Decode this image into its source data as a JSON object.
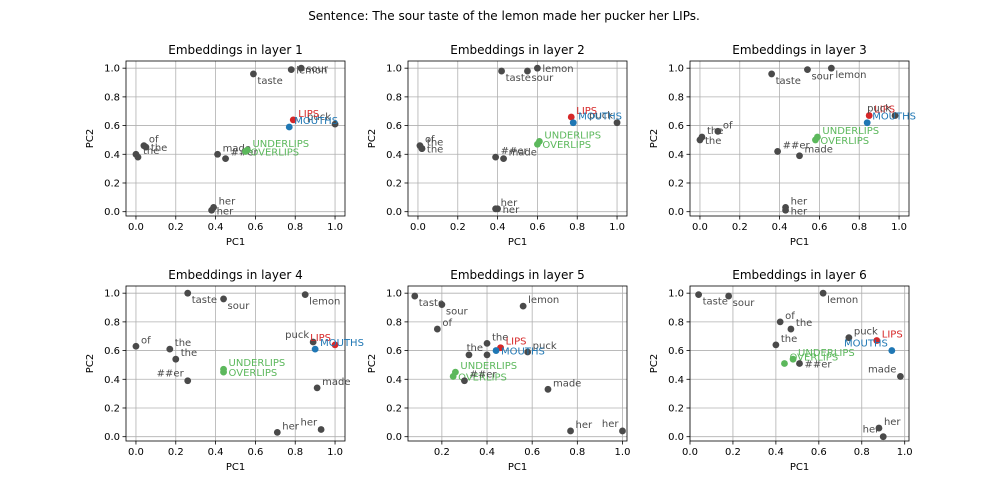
{
  "figure": {
    "title": "Sentence: The sour taste of the lemon made her pucker her LIPs."
  },
  "colors": {
    "default": "#4a4a4a",
    "target": "#d62728",
    "definition": "#1f77b4",
    "related": "#5cb85c",
    "grid": "#b0b0b0",
    "axis": "#000000"
  },
  "chart_data": [
    {
      "type": "scatter",
      "title": "Embeddings in layer 1",
      "xlabel": "PC1",
      "ylabel": "PC2",
      "xlim": [
        -0.05,
        1.05
      ],
      "ylim": [
        -0.03,
        1.05
      ],
      "xticks": [
        0.0,
        0.2,
        0.4,
        0.6,
        0.8,
        1.0
      ],
      "yticks": [
        0.0,
        0.2,
        0.4,
        0.6,
        0.8,
        1.0
      ],
      "grid": true,
      "points": [
        {
          "label": "taste",
          "x": 0.59,
          "y": 0.96,
          "group": "default",
          "anchor": "br"
        },
        {
          "label": "sour",
          "x": 0.83,
          "y": 1.0,
          "group": "default",
          "anchor": "r"
        },
        {
          "label": "lemon",
          "x": 0.78,
          "y": 0.99,
          "group": "default",
          "anchor": "r"
        },
        {
          "label": "puck",
          "x": 1.0,
          "y": 0.61,
          "group": "default",
          "anchor": "tl"
        },
        {
          "label": "LIPS",
          "x": 0.79,
          "y": 0.64,
          "group": "target",
          "anchor": "tr"
        },
        {
          "label": "MOUTHS",
          "x": 0.77,
          "y": 0.59,
          "group": "definition",
          "anchor": "tr"
        },
        {
          "label": "of",
          "x": 0.04,
          "y": 0.46,
          "group": "default",
          "anchor": "tr"
        },
        {
          "label": "the",
          "x": 0.05,
          "y": 0.45,
          "group": "default",
          "anchor": "r"
        },
        {
          "label": "the",
          "x": 0.01,
          "y": 0.38,
          "group": "default",
          "anchor": "tr"
        },
        {
          "label": "",
          "x": 0.0,
          "y": 0.4,
          "group": "default",
          "anchor": "r"
        },
        {
          "label": "made",
          "x": 0.41,
          "y": 0.4,
          "group": "default",
          "anchor": "tr"
        },
        {
          "label": "##er",
          "x": 0.45,
          "y": 0.37,
          "group": "default",
          "anchor": "tr"
        },
        {
          "label": "UNDERLIPS",
          "x": 0.56,
          "y": 0.43,
          "group": "related",
          "anchor": "tr"
        },
        {
          "label": "OVERLIPS",
          "x": 0.55,
          "y": 0.42,
          "group": "related",
          "anchor": "r"
        },
        {
          "label": "her",
          "x": 0.39,
          "y": 0.03,
          "group": "default",
          "anchor": "tr"
        },
        {
          "label": "her",
          "x": 0.38,
          "y": 0.01,
          "group": "default",
          "anchor": "r"
        }
      ]
    },
    {
      "type": "scatter",
      "title": "Embeddings in layer 2",
      "xlabel": "PC1",
      "ylabel": "PC2",
      "xlim": [
        -0.05,
        1.05
      ],
      "ylim": [
        -0.03,
        1.05
      ],
      "xticks": [
        0.0,
        0.2,
        0.4,
        0.6,
        0.8,
        1.0
      ],
      "yticks": [
        0.0,
        0.2,
        0.4,
        0.6,
        0.8,
        1.0
      ],
      "grid": true,
      "points": [
        {
          "label": "taste",
          "x": 0.42,
          "y": 0.98,
          "group": "default",
          "anchor": "br"
        },
        {
          "label": "sour",
          "x": 0.55,
          "y": 0.98,
          "group": "default",
          "anchor": "br"
        },
        {
          "label": "lemon",
          "x": 0.6,
          "y": 1.0,
          "group": "default",
          "anchor": "r"
        },
        {
          "label": "puck",
          "x": 1.0,
          "y": 0.62,
          "group": "default",
          "anchor": "tl"
        },
        {
          "label": "LIPS",
          "x": 0.77,
          "y": 0.66,
          "group": "target",
          "anchor": "tr"
        },
        {
          "label": "MOUTHS",
          "x": 0.78,
          "y": 0.62,
          "group": "definition",
          "anchor": "tr"
        },
        {
          "label": "of",
          "x": 0.01,
          "y": 0.46,
          "group": "default",
          "anchor": "tr"
        },
        {
          "label": "the",
          "x": 0.02,
          "y": 0.44,
          "group": "default",
          "anchor": "tr"
        },
        {
          "label": "the",
          "x": 0.02,
          "y": 0.44,
          "group": "default",
          "anchor": "r"
        },
        {
          "label": "##er",
          "x": 0.39,
          "y": 0.38,
          "group": "default",
          "anchor": "tr"
        },
        {
          "label": "made",
          "x": 0.43,
          "y": 0.37,
          "group": "default",
          "anchor": "tr"
        },
        {
          "label": "UNDERLIPS",
          "x": 0.61,
          "y": 0.49,
          "group": "related",
          "anchor": "tr"
        },
        {
          "label": "OVERLIPS",
          "x": 0.6,
          "y": 0.47,
          "group": "related",
          "anchor": "r"
        },
        {
          "label": "her",
          "x": 0.39,
          "y": 0.02,
          "group": "default",
          "anchor": "tr"
        },
        {
          "label": "her",
          "x": 0.4,
          "y": 0.02,
          "group": "default",
          "anchor": "r"
        }
      ]
    },
    {
      "type": "scatter",
      "title": "Embeddings in layer 3",
      "xlabel": "PC1",
      "ylabel": "PC2",
      "xlim": [
        -0.05,
        1.05
      ],
      "ylim": [
        -0.03,
        1.05
      ],
      "xticks": [
        0.0,
        0.2,
        0.4,
        0.6,
        0.8,
        1.0
      ],
      "yticks": [
        0.0,
        0.2,
        0.4,
        0.6,
        0.8,
        1.0
      ],
      "grid": true,
      "points": [
        {
          "label": "taste",
          "x": 0.36,
          "y": 0.96,
          "group": "default",
          "anchor": "br"
        },
        {
          "label": "sour",
          "x": 0.54,
          "y": 0.99,
          "group": "default",
          "anchor": "br"
        },
        {
          "label": "lemon",
          "x": 0.66,
          "y": 1.0,
          "group": "default",
          "anchor": "br"
        },
        {
          "label": "LIPS",
          "x": 0.85,
          "y": 0.67,
          "group": "target",
          "anchor": "tr"
        },
        {
          "label": "puck",
          "x": 0.98,
          "y": 0.67,
          "group": "default",
          "anchor": "tl"
        },
        {
          "label": "MOUTHS",
          "x": 0.84,
          "y": 0.62,
          "group": "definition",
          "anchor": "tr"
        },
        {
          "label": "of",
          "x": 0.09,
          "y": 0.56,
          "group": "default",
          "anchor": "tr"
        },
        {
          "label": "the",
          "x": 0.01,
          "y": 0.52,
          "group": "default",
          "anchor": "tr"
        },
        {
          "label": "the",
          "x": 0.0,
          "y": 0.5,
          "group": "default",
          "anchor": "r"
        },
        {
          "label": "UNDERLIPS",
          "x": 0.59,
          "y": 0.52,
          "group": "related",
          "anchor": "tr"
        },
        {
          "label": "OVERLIPS",
          "x": 0.58,
          "y": 0.5,
          "group": "related",
          "anchor": "r"
        },
        {
          "label": "##er",
          "x": 0.39,
          "y": 0.42,
          "group": "default",
          "anchor": "tr"
        },
        {
          "label": "made",
          "x": 0.5,
          "y": 0.39,
          "group": "default",
          "anchor": "tr"
        },
        {
          "label": "her",
          "x": 0.43,
          "y": 0.03,
          "group": "default",
          "anchor": "tr"
        },
        {
          "label": "her",
          "x": 0.43,
          "y": 0.01,
          "group": "default",
          "anchor": "r"
        }
      ]
    },
    {
      "type": "scatter",
      "title": "Embeddings in layer 4",
      "xlabel": "PC1",
      "ylabel": "PC2",
      "xlim": [
        -0.05,
        1.05
      ],
      "ylim": [
        -0.03,
        1.05
      ],
      "xticks": [
        0.0,
        0.2,
        0.4,
        0.6,
        0.8,
        1.0
      ],
      "yticks": [
        0.0,
        0.2,
        0.4,
        0.6,
        0.8,
        1.0
      ],
      "grid": true,
      "points": [
        {
          "label": "taste",
          "x": 0.26,
          "y": 1.0,
          "group": "default",
          "anchor": "br"
        },
        {
          "label": "sour",
          "x": 0.44,
          "y": 0.96,
          "group": "default",
          "anchor": "br"
        },
        {
          "label": "lemon",
          "x": 0.85,
          "y": 0.99,
          "group": "default",
          "anchor": "br"
        },
        {
          "label": "of",
          "x": 0.0,
          "y": 0.63,
          "group": "default",
          "anchor": "tr"
        },
        {
          "label": "the",
          "x": 0.17,
          "y": 0.61,
          "group": "default",
          "anchor": "tr"
        },
        {
          "label": "the",
          "x": 0.2,
          "y": 0.54,
          "group": "default",
          "anchor": "tr"
        },
        {
          "label": "puck",
          "x": 0.89,
          "y": 0.66,
          "group": "default",
          "anchor": "tl"
        },
        {
          "label": "LIPS",
          "x": 1.0,
          "y": 0.64,
          "group": "target",
          "anchor": "tl"
        },
        {
          "label": "MOUTHS",
          "x": 0.9,
          "y": 0.61,
          "group": "definition",
          "anchor": "tr"
        },
        {
          "label": "UNDERLIPS",
          "x": 0.44,
          "y": 0.47,
          "group": "related",
          "anchor": "tr"
        },
        {
          "label": "OVERLIPS",
          "x": 0.44,
          "y": 0.45,
          "group": "related",
          "anchor": "r"
        },
        {
          "label": "##er",
          "x": 0.26,
          "y": 0.39,
          "group": "default",
          "anchor": "tl"
        },
        {
          "label": "made",
          "x": 0.91,
          "y": 0.34,
          "group": "default",
          "anchor": "tr"
        },
        {
          "label": "her",
          "x": 0.71,
          "y": 0.03,
          "group": "default",
          "anchor": "tr"
        },
        {
          "label": "her",
          "x": 0.93,
          "y": 0.05,
          "group": "default",
          "anchor": "tl"
        }
      ]
    },
    {
      "type": "scatter",
      "title": "Embeddings in layer 5",
      "xlabel": "PC1",
      "ylabel": "PC2",
      "xlim": [
        0.05,
        1.02
      ],
      "ylim": [
        -0.03,
        1.05
      ],
      "xticks": [
        0.2,
        0.4,
        0.6,
        0.8,
        1.0
      ],
      "yticks": [
        0.0,
        0.2,
        0.4,
        0.6,
        0.8,
        1.0
      ],
      "grid": true,
      "points": [
        {
          "label": "taste",
          "x": 0.08,
          "y": 0.98,
          "group": "default",
          "anchor": "br"
        },
        {
          "label": "sour",
          "x": 0.2,
          "y": 0.92,
          "group": "default",
          "anchor": "br"
        },
        {
          "label": "lemon",
          "x": 0.56,
          "y": 0.91,
          "group": "default",
          "anchor": "tr"
        },
        {
          "label": "of",
          "x": 0.18,
          "y": 0.75,
          "group": "default",
          "anchor": "tr"
        },
        {
          "label": "the",
          "x": 0.4,
          "y": 0.65,
          "group": "default",
          "anchor": "tr"
        },
        {
          "label": "LIPS",
          "x": 0.46,
          "y": 0.62,
          "group": "target",
          "anchor": "tr"
        },
        {
          "label": "puck",
          "x": 0.58,
          "y": 0.59,
          "group": "default",
          "anchor": "tr"
        },
        {
          "label": "the",
          "x": 0.4,
          "y": 0.57,
          "group": "default",
          "anchor": "tl"
        },
        {
          "label": "MOUTHS",
          "x": 0.44,
          "y": 0.6,
          "group": "definition",
          "anchor": "r"
        },
        {
          "label": "",
          "x": 0.32,
          "y": 0.57,
          "group": "default",
          "anchor": "r"
        },
        {
          "label": "UNDERLIPS",
          "x": 0.26,
          "y": 0.45,
          "group": "related",
          "anchor": "tr"
        },
        {
          "label": "OVERLIPS",
          "x": 0.25,
          "y": 0.42,
          "group": "related",
          "anchor": "r"
        },
        {
          "label": "##er",
          "x": 0.3,
          "y": 0.39,
          "group": "default",
          "anchor": "tr"
        },
        {
          "label": "made",
          "x": 0.67,
          "y": 0.33,
          "group": "default",
          "anchor": "tr"
        },
        {
          "label": "her",
          "x": 0.77,
          "y": 0.04,
          "group": "default",
          "anchor": "tr"
        },
        {
          "label": "her",
          "x": 1.0,
          "y": 0.04,
          "group": "default",
          "anchor": "tl"
        }
      ]
    },
    {
      "type": "scatter",
      "title": "Embeddings in layer 6",
      "xlabel": "PC1",
      "ylabel": "PC2",
      "xlim": [
        0.0,
        1.02
      ],
      "ylim": [
        -0.03,
        1.05
      ],
      "xticks": [
        0.0,
        0.2,
        0.4,
        0.6,
        0.8,
        1.0
      ],
      "yticks": [
        0.0,
        0.2,
        0.4,
        0.6,
        0.8,
        1.0
      ],
      "grid": true,
      "points": [
        {
          "label": "taste",
          "x": 0.04,
          "y": 0.99,
          "group": "default",
          "anchor": "br"
        },
        {
          "label": "sour",
          "x": 0.18,
          "y": 0.98,
          "group": "default",
          "anchor": "br"
        },
        {
          "label": "lemon",
          "x": 0.62,
          "y": 1.0,
          "group": "default",
          "anchor": "br"
        },
        {
          "label": "of",
          "x": 0.42,
          "y": 0.8,
          "group": "default",
          "anchor": "tr"
        },
        {
          "label": "the",
          "x": 0.47,
          "y": 0.75,
          "group": "default",
          "anchor": "tr"
        },
        {
          "label": "the",
          "x": 0.4,
          "y": 0.64,
          "group": "default",
          "anchor": "tr"
        },
        {
          "label": "puck",
          "x": 0.74,
          "y": 0.69,
          "group": "default",
          "anchor": "tr"
        },
        {
          "label": "LIPS",
          "x": 0.87,
          "y": 0.67,
          "group": "target",
          "anchor": "tr"
        },
        {
          "label": "MOUTHS",
          "x": 0.94,
          "y": 0.6,
          "group": "definition",
          "anchor": "tl"
        },
        {
          "label": "UNDERLIPS",
          "x": 0.48,
          "y": 0.54,
          "group": "related",
          "anchor": "tr"
        },
        {
          "label": "OVERLIPS",
          "x": 0.44,
          "y": 0.51,
          "group": "related",
          "anchor": "tr"
        },
        {
          "label": "##er",
          "x": 0.51,
          "y": 0.51,
          "group": "default",
          "anchor": "r"
        },
        {
          "label": "made",
          "x": 0.98,
          "y": 0.42,
          "group": "default",
          "anchor": "tl"
        },
        {
          "label": "her",
          "x": 0.88,
          "y": 0.06,
          "group": "default",
          "anchor": "tr"
        },
        {
          "label": "her",
          "x": 0.9,
          "y": 0.0,
          "group": "default",
          "anchor": "tl"
        }
      ]
    }
  ]
}
